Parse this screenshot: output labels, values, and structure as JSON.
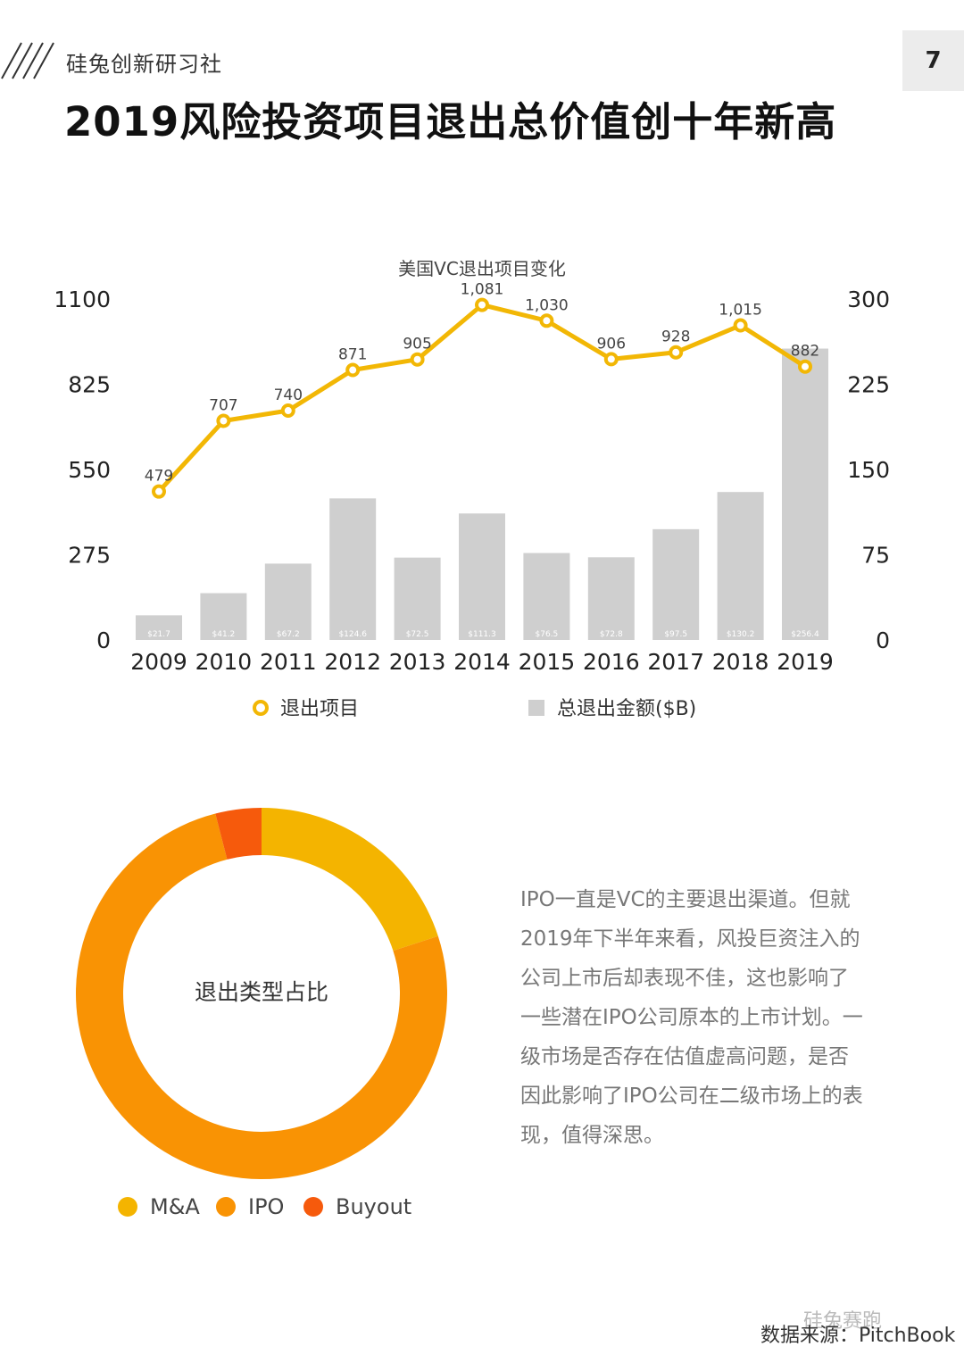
{
  "header": {
    "brand": "硅兔创新研习社",
    "page_number": "7",
    "title": "2019风险投资项目退出总价值创十年新高"
  },
  "colors": {
    "line": "#f2b705",
    "bar": "#cfcfcf",
    "ma": "#f4b400",
    "ipo": "#f99304",
    "buyout": "#f65a0c"
  },
  "chart_data": [
    {
      "type": "bar+line",
      "title": "美国VC退出项目变化",
      "categories": [
        "2009",
        "2010",
        "2011",
        "2012",
        "2013",
        "2014",
        "2015",
        "2016",
        "2017",
        "2018",
        "2019"
      ],
      "series": [
        {
          "name": "退出项目",
          "axis": "left",
          "type": "line",
          "values": [
            479,
            707,
            740,
            871,
            905,
            1081,
            1030,
            906,
            928,
            1015,
            882
          ],
          "labels": [
            "479",
            "707",
            "740",
            "871",
            "905",
            "1,081",
            "1,030",
            "906",
            "928",
            "1,015",
            "882"
          ]
        },
        {
          "name": "总退出金额($B)",
          "axis": "right",
          "type": "bar",
          "values": [
            21.7,
            41.2,
            67.2,
            124.6,
            72.5,
            111.3,
            76.5,
            72.8,
            97.5,
            130.2,
            256.4
          ],
          "labels": [
            "$21.7",
            "$41.2",
            "$67.2",
            "$124.6",
            "$72.5",
            "$111.3",
            "$76.5",
            "$72.8",
            "$97.5",
            "$130.2",
            "$256.4"
          ]
        }
      ],
      "y_left": {
        "ylim": [
          0,
          1100
        ],
        "ticks": [
          "0",
          "275",
          "550",
          "825",
          "1100"
        ]
      },
      "y_right": {
        "ylim": [
          0,
          300
        ],
        "ticks": [
          "0",
          "75",
          "150",
          "225",
          "300"
        ]
      },
      "legend_position": "bottom"
    },
    {
      "type": "pie",
      "title": "退出类型占比",
      "categories": [
        "M&A",
        "IPO",
        "Buyout"
      ],
      "values": [
        20,
        76,
        4
      ],
      "legend_position": "bottom"
    }
  ],
  "paragraph": [
    "IPO一直是VC的主要退出渠道。但就",
    "2019年下半年来看，风投巨资注入的",
    "公司上市后却表现不佳，这也影响了",
    "一些潜在IPO公司原本的上市计划。一",
    "级市场是否存在估值虚高问题，是否",
    "因此影响了IPO公司在二级市场上的表",
    "现，值得深思。"
  ],
  "footer": {
    "source": "数据来源：PitchBook",
    "watermark": "硅兔赛跑"
  }
}
